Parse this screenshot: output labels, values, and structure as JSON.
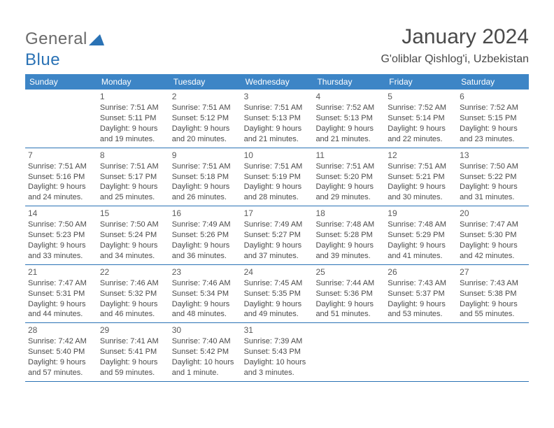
{
  "logo": {
    "part1": "General",
    "part2": "Blue"
  },
  "header": {
    "month": "January 2024",
    "location": "G'oliblar Qishlog'i, Uzbekistan"
  },
  "colors": {
    "header_bg": "#3d85c6",
    "header_text": "#ffffff",
    "rule": "#2a72b5",
    "text": "#4a4a4a",
    "logo_gray": "#6a6a6a",
    "logo_blue": "#2a72b5"
  },
  "day_names": [
    "Sunday",
    "Monday",
    "Tuesday",
    "Wednesday",
    "Thursday",
    "Friday",
    "Saturday"
  ],
  "weeks": [
    [
      {
        "n": "",
        "sunrise": "",
        "sunset": "",
        "daylight": ""
      },
      {
        "n": "1",
        "sunrise": "Sunrise: 7:51 AM",
        "sunset": "Sunset: 5:11 PM",
        "daylight": "Daylight: 9 hours and 19 minutes."
      },
      {
        "n": "2",
        "sunrise": "Sunrise: 7:51 AM",
        "sunset": "Sunset: 5:12 PM",
        "daylight": "Daylight: 9 hours and 20 minutes."
      },
      {
        "n": "3",
        "sunrise": "Sunrise: 7:51 AM",
        "sunset": "Sunset: 5:13 PM",
        "daylight": "Daylight: 9 hours and 21 minutes."
      },
      {
        "n": "4",
        "sunrise": "Sunrise: 7:52 AM",
        "sunset": "Sunset: 5:13 PM",
        "daylight": "Daylight: 9 hours and 21 minutes."
      },
      {
        "n": "5",
        "sunrise": "Sunrise: 7:52 AM",
        "sunset": "Sunset: 5:14 PM",
        "daylight": "Daylight: 9 hours and 22 minutes."
      },
      {
        "n": "6",
        "sunrise": "Sunrise: 7:52 AM",
        "sunset": "Sunset: 5:15 PM",
        "daylight": "Daylight: 9 hours and 23 minutes."
      }
    ],
    [
      {
        "n": "7",
        "sunrise": "Sunrise: 7:51 AM",
        "sunset": "Sunset: 5:16 PM",
        "daylight": "Daylight: 9 hours and 24 minutes."
      },
      {
        "n": "8",
        "sunrise": "Sunrise: 7:51 AM",
        "sunset": "Sunset: 5:17 PM",
        "daylight": "Daylight: 9 hours and 25 minutes."
      },
      {
        "n": "9",
        "sunrise": "Sunrise: 7:51 AM",
        "sunset": "Sunset: 5:18 PM",
        "daylight": "Daylight: 9 hours and 26 minutes."
      },
      {
        "n": "10",
        "sunrise": "Sunrise: 7:51 AM",
        "sunset": "Sunset: 5:19 PM",
        "daylight": "Daylight: 9 hours and 28 minutes."
      },
      {
        "n": "11",
        "sunrise": "Sunrise: 7:51 AM",
        "sunset": "Sunset: 5:20 PM",
        "daylight": "Daylight: 9 hours and 29 minutes."
      },
      {
        "n": "12",
        "sunrise": "Sunrise: 7:51 AM",
        "sunset": "Sunset: 5:21 PM",
        "daylight": "Daylight: 9 hours and 30 minutes."
      },
      {
        "n": "13",
        "sunrise": "Sunrise: 7:50 AM",
        "sunset": "Sunset: 5:22 PM",
        "daylight": "Daylight: 9 hours and 31 minutes."
      }
    ],
    [
      {
        "n": "14",
        "sunrise": "Sunrise: 7:50 AM",
        "sunset": "Sunset: 5:23 PM",
        "daylight": "Daylight: 9 hours and 33 minutes."
      },
      {
        "n": "15",
        "sunrise": "Sunrise: 7:50 AM",
        "sunset": "Sunset: 5:24 PM",
        "daylight": "Daylight: 9 hours and 34 minutes."
      },
      {
        "n": "16",
        "sunrise": "Sunrise: 7:49 AM",
        "sunset": "Sunset: 5:26 PM",
        "daylight": "Daylight: 9 hours and 36 minutes."
      },
      {
        "n": "17",
        "sunrise": "Sunrise: 7:49 AM",
        "sunset": "Sunset: 5:27 PM",
        "daylight": "Daylight: 9 hours and 37 minutes."
      },
      {
        "n": "18",
        "sunrise": "Sunrise: 7:48 AM",
        "sunset": "Sunset: 5:28 PM",
        "daylight": "Daylight: 9 hours and 39 minutes."
      },
      {
        "n": "19",
        "sunrise": "Sunrise: 7:48 AM",
        "sunset": "Sunset: 5:29 PM",
        "daylight": "Daylight: 9 hours and 41 minutes."
      },
      {
        "n": "20",
        "sunrise": "Sunrise: 7:47 AM",
        "sunset": "Sunset: 5:30 PM",
        "daylight": "Daylight: 9 hours and 42 minutes."
      }
    ],
    [
      {
        "n": "21",
        "sunrise": "Sunrise: 7:47 AM",
        "sunset": "Sunset: 5:31 PM",
        "daylight": "Daylight: 9 hours and 44 minutes."
      },
      {
        "n": "22",
        "sunrise": "Sunrise: 7:46 AM",
        "sunset": "Sunset: 5:32 PM",
        "daylight": "Daylight: 9 hours and 46 minutes."
      },
      {
        "n": "23",
        "sunrise": "Sunrise: 7:46 AM",
        "sunset": "Sunset: 5:34 PM",
        "daylight": "Daylight: 9 hours and 48 minutes."
      },
      {
        "n": "24",
        "sunrise": "Sunrise: 7:45 AM",
        "sunset": "Sunset: 5:35 PM",
        "daylight": "Daylight: 9 hours and 49 minutes."
      },
      {
        "n": "25",
        "sunrise": "Sunrise: 7:44 AM",
        "sunset": "Sunset: 5:36 PM",
        "daylight": "Daylight: 9 hours and 51 minutes."
      },
      {
        "n": "26",
        "sunrise": "Sunrise: 7:43 AM",
        "sunset": "Sunset: 5:37 PM",
        "daylight": "Daylight: 9 hours and 53 minutes."
      },
      {
        "n": "27",
        "sunrise": "Sunrise: 7:43 AM",
        "sunset": "Sunset: 5:38 PM",
        "daylight": "Daylight: 9 hours and 55 minutes."
      }
    ],
    [
      {
        "n": "28",
        "sunrise": "Sunrise: 7:42 AM",
        "sunset": "Sunset: 5:40 PM",
        "daylight": "Daylight: 9 hours and 57 minutes."
      },
      {
        "n": "29",
        "sunrise": "Sunrise: 7:41 AM",
        "sunset": "Sunset: 5:41 PM",
        "daylight": "Daylight: 9 hours and 59 minutes."
      },
      {
        "n": "30",
        "sunrise": "Sunrise: 7:40 AM",
        "sunset": "Sunset: 5:42 PM",
        "daylight": "Daylight: 10 hours and 1 minute."
      },
      {
        "n": "31",
        "sunrise": "Sunrise: 7:39 AM",
        "sunset": "Sunset: 5:43 PM",
        "daylight": "Daylight: 10 hours and 3 minutes."
      },
      {
        "n": "",
        "sunrise": "",
        "sunset": "",
        "daylight": ""
      },
      {
        "n": "",
        "sunrise": "",
        "sunset": "",
        "daylight": ""
      },
      {
        "n": "",
        "sunrise": "",
        "sunset": "",
        "daylight": ""
      }
    ]
  ]
}
